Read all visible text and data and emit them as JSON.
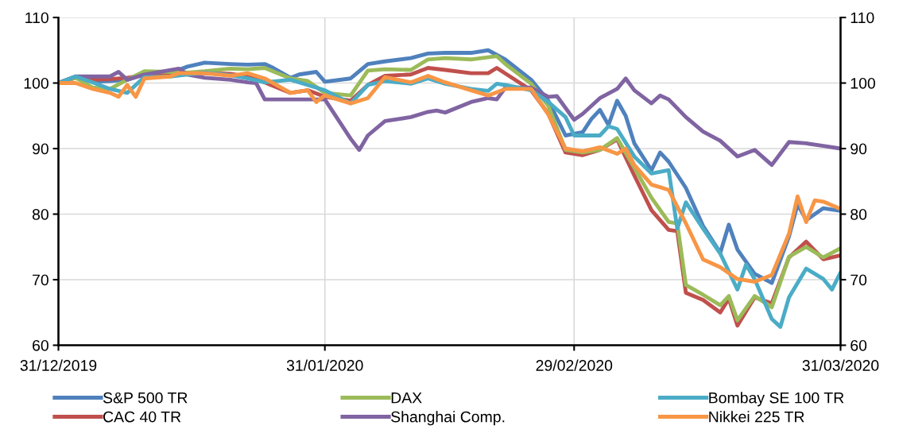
{
  "chart_data": {
    "type": "line",
    "xlim": [
      "2019-12-31",
      "2020-03-31"
    ],
    "xticks": [
      {
        "value": "2019-12-31",
        "label": "31/12/2019"
      },
      {
        "value": "2020-01-31",
        "label": "31/01/2020"
      },
      {
        "value": "2020-02-29",
        "label": "29/02/2020"
      },
      {
        "value": "2020-03-31",
        "label": "31/03/2020"
      }
    ],
    "ylim": [
      60,
      110
    ],
    "yticks": [
      60,
      70,
      80,
      90,
      100,
      110
    ],
    "y2lim": [
      60,
      110
    ],
    "y2ticks": [
      60,
      70,
      80,
      90,
      100,
      110
    ],
    "grid": true,
    "legend": "bottom",
    "marker": "none",
    "line_style": "solid",
    "series": [
      {
        "name": "S&P 500 TR",
        "color": "#4f81bd",
        "x": [
          "2019-12-31",
          "2020-01-02",
          "2020-01-04",
          "2020-01-06",
          "2020-01-08",
          "2020-01-10",
          "2020-01-13",
          "2020-01-15",
          "2020-01-17",
          "2020-01-20",
          "2020-01-22",
          "2020-01-24",
          "2020-01-25",
          "2020-01-27",
          "2020-01-28",
          "2020-01-30",
          "2020-01-31",
          "2020-02-03",
          "2020-02-05",
          "2020-02-07",
          "2020-02-10",
          "2020-02-12",
          "2020-02-14",
          "2020-02-17",
          "2020-02-19",
          "2020-02-21",
          "2020-02-24",
          "2020-02-26",
          "2020-02-28",
          "2020-03-01",
          "2020-03-02",
          "2020-03-03",
          "2020-03-04",
          "2020-03-05",
          "2020-03-06",
          "2020-03-07",
          "2020-03-09",
          "2020-03-10",
          "2020-03-11",
          "2020-03-13",
          "2020-03-15",
          "2020-03-17",
          "2020-03-18",
          "2020-03-19",
          "2020-03-21",
          "2020-03-23",
          "2020-03-25",
          "2020-03-26",
          "2020-03-27",
          "2020-03-29",
          "2020-03-31"
        ],
        "values": [
          100,
          101,
          100.2,
          100.3,
          100.5,
          101.3,
          101.5,
          102.5,
          103.1,
          102.9,
          102.8,
          102.9,
          102.3,
          100.8,
          101.3,
          101.7,
          100.2,
          100.7,
          102.9,
          103.3,
          103.8,
          104.5,
          104.6,
          104.6,
          105.0,
          103.6,
          100.5,
          97.3,
          92.0,
          92.5,
          94.5,
          95.9,
          93.6,
          97.3,
          95.0,
          90.8,
          86.7,
          89.4,
          88.0,
          84.0,
          78.2,
          74.1,
          78.4,
          74.6,
          70.9,
          69.5,
          76.6,
          81.5,
          79.1,
          80.9,
          80.5
        ]
      },
      {
        "name": "CAC 40 TR",
        "color": "#c0504d",
        "x": [
          "2019-12-31",
          "2020-01-02",
          "2020-01-04",
          "2020-01-06",
          "2020-01-08",
          "2020-01-10",
          "2020-01-13",
          "2020-01-15",
          "2020-01-17",
          "2020-01-20",
          "2020-01-22",
          "2020-01-24",
          "2020-01-27",
          "2020-01-29",
          "2020-01-31",
          "2020-02-03",
          "2020-02-05",
          "2020-02-07",
          "2020-02-10",
          "2020-02-12",
          "2020-02-14",
          "2020-02-17",
          "2020-02-19",
          "2020-02-20",
          "2020-02-24",
          "2020-02-26",
          "2020-02-28",
          "2020-03-01",
          "2020-03-03",
          "2020-03-05",
          "2020-03-07",
          "2020-03-09",
          "2020-03-11",
          "2020-03-12",
          "2020-03-13",
          "2020-03-15",
          "2020-03-17",
          "2020-03-18",
          "2020-03-19",
          "2020-03-21",
          "2020-03-23",
          "2020-03-25",
          "2020-03-27",
          "2020-03-29",
          "2020-03-31"
        ],
        "values": [
          100,
          100.8,
          100.5,
          100.6,
          100.8,
          101.2,
          101.3,
          101.5,
          101.5,
          101.4,
          101.0,
          100.1,
          98.5,
          98.9,
          97.9,
          97.3,
          99.7,
          101.1,
          101.3,
          102.3,
          102.0,
          101.5,
          101.5,
          102.3,
          98.9,
          95.3,
          89.4,
          89.0,
          89.8,
          91.4,
          85.9,
          80.6,
          77.6,
          77.4,
          68.0,
          66.9,
          65.0,
          67.1,
          63.0,
          67.3,
          66.4,
          73.4,
          75.8,
          73.1,
          73.7
        ]
      },
      {
        "name": "DAX",
        "color": "#9bbb59",
        "x": [
          "2019-12-31",
          "2020-01-02",
          "2020-01-04",
          "2020-01-06",
          "2020-01-08",
          "2020-01-10",
          "2020-01-13",
          "2020-01-15",
          "2020-01-17",
          "2020-01-20",
          "2020-01-22",
          "2020-01-24",
          "2020-01-27",
          "2020-01-29",
          "2020-01-31",
          "2020-02-03",
          "2020-02-05",
          "2020-02-07",
          "2020-02-10",
          "2020-02-12",
          "2020-02-14",
          "2020-02-17",
          "2020-02-20",
          "2020-02-21",
          "2020-02-24",
          "2020-02-26",
          "2020-02-28",
          "2020-03-01",
          "2020-03-03",
          "2020-03-05",
          "2020-03-07",
          "2020-03-09",
          "2020-03-11",
          "2020-03-12",
          "2020-03-13",
          "2020-03-15",
          "2020-03-17",
          "2020-03-18",
          "2020-03-19",
          "2020-03-21",
          "2020-03-23",
          "2020-03-25",
          "2020-03-27",
          "2020-03-29",
          "2020-03-31"
        ],
        "values": [
          100,
          100.8,
          99.3,
          99.1,
          100.5,
          101.8,
          101.7,
          101.6,
          101.8,
          102.2,
          102.1,
          102.3,
          100.7,
          100.3,
          98.5,
          98.1,
          101.9,
          102.1,
          102.0,
          103.6,
          103.8,
          103.6,
          104.1,
          102.9,
          99.9,
          96.5,
          89.8,
          89.4,
          89.8,
          91.6,
          87.1,
          82.5,
          78.8,
          78.6,
          69.2,
          67.7,
          66.1,
          67.5,
          63.8,
          67.5,
          65.8,
          73.5,
          75.0,
          73.4,
          74.8
        ]
      },
      {
        "name": "Shanghai Comp.",
        "color": "#8064a2",
        "x": [
          "2019-12-31",
          "2020-01-02",
          "2020-01-04",
          "2020-01-06",
          "2020-01-07",
          "2020-01-08",
          "2020-01-10",
          "2020-01-14",
          "2020-01-15",
          "2020-01-17",
          "2020-01-20",
          "2020-01-22",
          "2020-01-23",
          "2020-01-24",
          "2020-01-27",
          "2020-01-29",
          "2020-01-31",
          "2020-02-03",
          "2020-02-04",
          "2020-02-05",
          "2020-02-07",
          "2020-02-10",
          "2020-02-12",
          "2020-02-13",
          "2020-02-14",
          "2020-02-17",
          "2020-02-19",
          "2020-02-20",
          "2020-02-21",
          "2020-02-24",
          "2020-02-26",
          "2020-02-27",
          "2020-02-29",
          "2020-03-01",
          "2020-03-03",
          "2020-03-05",
          "2020-03-06",
          "2020-03-07",
          "2020-03-09",
          "2020-03-10",
          "2020-03-11",
          "2020-03-13",
          "2020-03-15",
          "2020-03-17",
          "2020-03-19",
          "2020-03-21",
          "2020-03-23",
          "2020-03-25",
          "2020-03-27",
          "2020-03-29",
          "2020-03-31"
        ],
        "values": [
          100,
          101,
          101,
          101,
          101.7,
          100.5,
          101.3,
          102.2,
          101.3,
          100.8,
          100.5,
          100.1,
          100,
          97.5,
          97.5,
          97.5,
          97.5,
          91.5,
          89.8,
          92.0,
          94.2,
          94.8,
          95.6,
          95.8,
          95.5,
          97.1,
          97.7,
          97.5,
          99.3,
          99.3,
          97.9,
          98,
          94.4,
          95.3,
          97.7,
          99.1,
          100.7,
          98.9,
          96.9,
          98.1,
          97.5,
          94.8,
          92.6,
          91.2,
          88.8,
          89.8,
          87.5,
          91.0,
          90.8,
          90.4,
          90.0
        ]
      },
      {
        "name": "Bombay SE 100 TR",
        "color": "#4bacc6",
        "x": [
          "2019-12-31",
          "2020-01-02",
          "2020-01-04",
          "2020-01-06",
          "2020-01-08",
          "2020-01-10",
          "2020-01-13",
          "2020-01-15",
          "2020-01-17",
          "2020-01-20",
          "2020-01-22",
          "2020-01-24",
          "2020-01-27",
          "2020-01-29",
          "2020-01-31",
          "2020-02-03",
          "2020-02-05",
          "2020-02-07",
          "2020-02-10",
          "2020-02-12",
          "2020-02-14",
          "2020-02-17",
          "2020-02-19",
          "2020-02-20",
          "2020-02-21",
          "2020-02-24",
          "2020-02-26",
          "2020-02-28",
          "2020-02-29",
          "2020-03-01",
          "2020-03-03",
          "2020-03-04",
          "2020-03-05",
          "2020-03-07",
          "2020-03-09",
          "2020-03-11",
          "2020-03-12",
          "2020-03-13",
          "2020-03-15",
          "2020-03-17",
          "2020-03-19",
          "2020-03-20",
          "2020-03-21",
          "2020-03-23",
          "2020-03-24",
          "2020-03-25",
          "2020-03-27",
          "2020-03-29",
          "2020-03-30",
          "2020-03-31"
        ],
        "values": [
          100,
          101,
          100.1,
          99.1,
          98.5,
          100.9,
          101,
          101.3,
          101.6,
          101.2,
          100.7,
          100.1,
          100.5,
          99.7,
          98.9,
          96.9,
          99.7,
          100.3,
          99.9,
          100.7,
          99.9,
          99.1,
          98.8,
          99.9,
          99.7,
          98.9,
          97.1,
          94.8,
          92.0,
          92.0,
          92.0,
          93.4,
          93.0,
          88.8,
          86.2,
          86.7,
          77.8,
          81.8,
          77.8,
          74.0,
          68.5,
          72.3,
          70.1,
          64.0,
          62.8,
          67.3,
          71.7,
          70.1,
          68.5,
          71.1
        ]
      },
      {
        "name": "Nikkei 225 TR",
        "color": "#f79646",
        "x": [
          "2019-12-31",
          "2020-01-02",
          "2020-01-04",
          "2020-01-06",
          "2020-01-07",
          "2020-01-08",
          "2020-01-09",
          "2020-01-10",
          "2020-01-13",
          "2020-01-14",
          "2020-01-17",
          "2020-01-20",
          "2020-01-22",
          "2020-01-24",
          "2020-01-27",
          "2020-01-29",
          "2020-01-30",
          "2020-01-31",
          "2020-02-03",
          "2020-02-05",
          "2020-02-07",
          "2020-02-10",
          "2020-02-12",
          "2020-02-14",
          "2020-02-17",
          "2020-02-19",
          "2020-02-21",
          "2020-02-24",
          "2020-02-26",
          "2020-02-28",
          "2020-03-01",
          "2020-03-03",
          "2020-03-05",
          "2020-03-06",
          "2020-03-07",
          "2020-03-09",
          "2020-03-10",
          "2020-03-11",
          "2020-03-13",
          "2020-03-15",
          "2020-03-17",
          "2020-03-19",
          "2020-03-21",
          "2020-03-23",
          "2020-03-25",
          "2020-03-26",
          "2020-03-27",
          "2020-03-28",
          "2020-03-29",
          "2020-03-31"
        ],
        "values": [
          100,
          100,
          99.1,
          98.5,
          97.9,
          99.7,
          97.9,
          100.7,
          101,
          101.5,
          101.5,
          101.1,
          101.5,
          100.7,
          98.5,
          98.9,
          97.1,
          98.1,
          96.9,
          97.7,
          100.9,
          100.1,
          101.1,
          100.1,
          98.9,
          98.1,
          99.1,
          99.1,
          95.2,
          90.0,
          89.6,
          90.2,
          89.2,
          90.0,
          87.5,
          84.5,
          84.1,
          83.7,
          78.6,
          73.1,
          71.9,
          70.1,
          69.7,
          70.7,
          77.0,
          82.7,
          78.8,
          82.1,
          81.9,
          80.8
        ]
      }
    ]
  }
}
